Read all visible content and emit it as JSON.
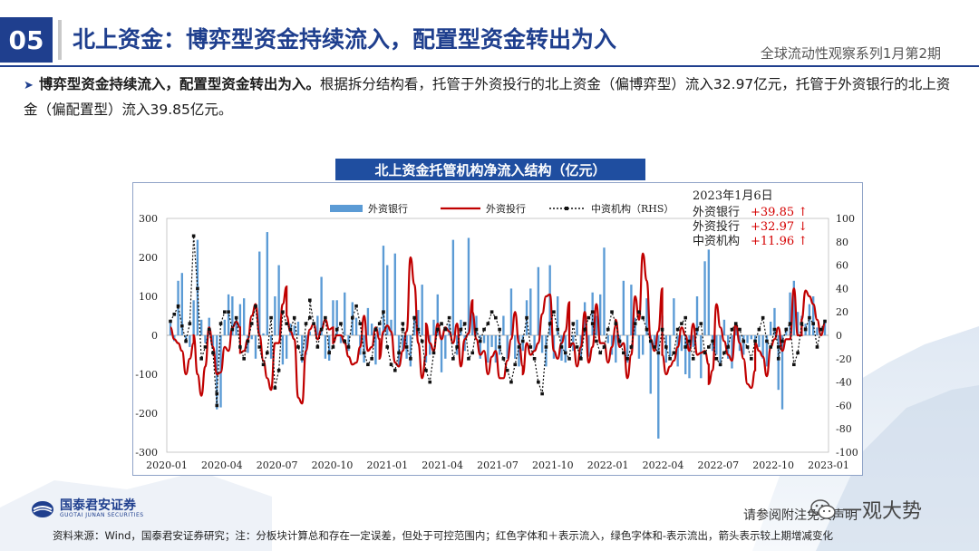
{
  "header": {
    "section_number": "05",
    "title": "北上资金：博弈型资金持续流入，配置型资金转出为入",
    "series_name": "全球流动性观察系列1月第2期"
  },
  "bullet": {
    "bold": "博弈型资金持续流入，配置型资金转出为入。",
    "text": "根据拆分结构看，托管于外资投行的北上资金（偏博弈型）流入32.97亿元，托管于外资银行的北上资金（偏配置型）流入39.85亿元。"
  },
  "chart_data": {
    "type": "bar+line",
    "title": "北上资金托管机构净流入结构（亿元）",
    "x_ticks": [
      "2020-01",
      "2020-04",
      "2020-07",
      "2020-10",
      "2021-01",
      "2021-04",
      "2021-07",
      "2021-10",
      "2022-01",
      "2022-04",
      "2022-07",
      "2022-10",
      "2023-01"
    ],
    "ylim_left": [
      -300,
      300
    ],
    "yticks_left": [
      -300,
      -200,
      -100,
      0,
      100,
      200,
      300
    ],
    "ylim_right": [
      -100,
      100
    ],
    "yticks_right": [
      -100,
      -80,
      -60,
      -40,
      -20,
      0,
      20,
      40,
      60,
      80,
      100
    ],
    "legend": {
      "bank": "外资银行",
      "ib": "外资投行",
      "domestic": "中资机构（RHS）"
    },
    "annotation": {
      "date": "2023年1月6日",
      "rows": [
        {
          "label": "外资银行",
          "value": "+39.85",
          "arrow": "↑"
        },
        {
          "label": "外资投行",
          "value": "+32.97",
          "arrow": "↓"
        },
        {
          "label": "中资机构",
          "value": "+11.96",
          "arrow": "↑"
        }
      ]
    },
    "series": [
      {
        "name": "外资银行",
        "axis": "left",
        "values": [
          32,
          -15,
          140,
          160,
          -20,
          -30,
          90,
          245,
          40,
          -20,
          45,
          -35,
          -190,
          -185,
          40,
          105,
          100,
          40,
          80,
          95,
          -45,
          -10,
          -60,
          215,
          5,
          265,
          -60,
          100,
          180,
          -75,
          -60,
          30,
          25,
          35,
          -70,
          -50,
          10,
          0,
          50,
          150,
          -60,
          -65,
          90,
          90,
          -20,
          110,
          -40,
          85,
          45,
          -50,
          -70,
          70,
          30,
          -75,
          20,
          230,
          180,
          40,
          210,
          -80,
          -40,
          -60,
          -80,
          50,
          65,
          130,
          -70,
          -50,
          40,
          105,
          -95,
          -60,
          30,
          245,
          -50,
          40,
          -40,
          250,
          60,
          50,
          -60,
          -20,
          -70,
          -30,
          -70,
          -50,
          50,
          -60,
          120,
          -60,
          -80,
          -40,
          90,
          120,
          -40,
          175,
          -45,
          -80,
          180,
          -60,
          100,
          -65,
          -70,
          40,
          -40,
          40,
          -60,
          85,
          -55,
          110,
          50,
          105,
          225,
          -20,
          -50,
          -70,
          -30,
          140,
          -70,
          130,
          45,
          -60,
          -50,
          95,
          -150,
          -30,
          -265,
          50,
          -70,
          -55,
          95,
          -80,
          -40,
          -100,
          -110,
          -30,
          100,
          -110,
          190,
          220,
          -40,
          -50,
          -80,
          40,
          -60,
          -85,
          25,
          -40,
          -50,
          -20,
          -10,
          -20,
          -30,
          -60,
          -80,
          35,
          70,
          -140,
          -190,
          20,
          110,
          140,
          60,
          50,
          30,
          80,
          100,
          20,
          0,
          40
        ]
      },
      {
        "name": "外资投行",
        "axis": "left",
        "values": [
          20,
          -10,
          -20,
          -40,
          -100,
          -60,
          -20,
          0,
          -100,
          -155,
          -80,
          20,
          -30,
          -100,
          -95,
          -30,
          -40,
          20,
          35,
          20,
          -45,
          -40,
          -10,
          50,
          80,
          0,
          -65,
          -110,
          -140,
          -20,
          -20,
          80,
          125,
          50,
          10,
          -10,
          -160,
          -175,
          -40,
          15,
          30,
          -10,
          15,
          40,
          15,
          20,
          -20,
          0,
          0,
          -20,
          -55,
          -75,
          -70,
          -30,
          50,
          -40,
          -30,
          20,
          -10,
          -60,
          10,
          25,
          10,
          -70,
          -80,
          -40,
          10,
          200,
          130,
          -20,
          -110,
          -50,
          30,
          -20,
          -40,
          30,
          -10,
          20,
          10,
          -20,
          30,
          -80,
          -10,
          5,
          90,
          60,
          -10,
          -50,
          -40,
          -100,
          -55,
          -40,
          -110,
          -110,
          -65,
          -10,
          60,
          -20,
          -80,
          -100,
          -20,
          -50,
          -40,
          -20,
          55,
          100,
          105,
          -40,
          -60,
          -20,
          10,
          85,
          -30,
          -20,
          -80,
          -30,
          60,
          -70,
          -30,
          80,
          -20,
          -20,
          -70,
          -30,
          25,
          40,
          -30,
          -20,
          -110,
          -50,
          100,
          40,
          210,
          140,
          -10,
          -40,
          10,
          120,
          -50,
          -100,
          -80,
          -65,
          -30,
          20,
          0,
          -40,
          30,
          -50,
          -45,
          -40,
          -75,
          -125,
          -90,
          80,
          20,
          -15,
          -50,
          -65,
          30,
          -20,
          -60,
          -125,
          -135,
          -90,
          -20,
          -40,
          -55,
          -105,
          -30,
          -10,
          20,
          -40,
          -10,
          -10,
          120,
          0,
          0,
          40,
          115,
          100,
          80,
          40,
          0,
          30
        ]
      },
      {
        "name": "中资机构",
        "axis": "right",
        "values": [
          12,
          18,
          25,
          8,
          -5,
          10,
          85,
          40,
          -20,
          -10,
          5,
          -15,
          -60,
          -50,
          10,
          20,
          20,
          5,
          15,
          -10,
          -20,
          -5,
          10,
          25,
          -10,
          -25,
          -15,
          15,
          -45,
          -30,
          20,
          10,
          5,
          15,
          -10,
          -20,
          10,
          15,
          30,
          10,
          -10,
          5,
          15,
          -15,
          -10,
          5,
          10,
          -5,
          -10,
          15,
          25,
          10,
          -15,
          -25,
          -20,
          5,
          10,
          20,
          -10,
          -25,
          -30,
          -15,
          5,
          10,
          -10,
          -20,
          15,
          5,
          -5,
          -30,
          -40,
          -15,
          5,
          10,
          5,
          15,
          -20,
          -10,
          5,
          10,
          -20,
          -15,
          5,
          -5,
          5,
          10,
          20,
          15,
          5,
          -10,
          -20,
          -30,
          -40,
          -25,
          -10,
          -5,
          15,
          -10,
          -20,
          -40,
          -50,
          -10,
          10,
          20,
          5,
          -10,
          -15,
          -20,
          10,
          -10,
          -20,
          5,
          15,
          20,
          10,
          -5,
          -15,
          -10,
          5,
          20,
          10,
          -5,
          -15,
          -20,
          -10,
          10,
          20,
          15,
          5,
          -5,
          -10,
          -15,
          5,
          -10,
          -20,
          -15,
          5,
          10,
          15,
          -10,
          -5,
          -20,
          5,
          10,
          -15,
          -10,
          -5,
          -20,
          -25,
          -15,
          -10,
          5,
          10,
          5,
          -5,
          -10,
          -20,
          -5,
          5,
          15,
          -5,
          -10,
          5,
          -10,
          -20,
          -5,
          5,
          10,
          -25,
          -15,
          10,
          5,
          15,
          10,
          -10,
          5,
          12
        ]
      }
    ]
  },
  "footer": {
    "logo_name": "国泰君安证券",
    "logo_sub": "GUOTAI JUNAN SECURITIES",
    "disclaimer": "请参阅附注免责声明",
    "wechat": "一观大势",
    "source": "资料来源：Wind，国泰君安证券研究；注：分板块计算总和存在一定误差，但处于可控范围内；红色字体和＋表示流入，绿色字体和-表示流出，箭头表示较上期增减变化"
  },
  "colors": {
    "brand": "#1f3f8e",
    "bar": "#5b9bd5",
    "line": "#c00000",
    "dotted": "#111111",
    "annotation_value": "#d40000"
  }
}
